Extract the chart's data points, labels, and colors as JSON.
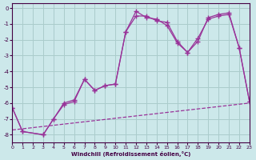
{
  "background_color": "#cce8ea",
  "grid_color": "#aacccc",
  "line_color": "#993399",
  "xlabel": "Windchill (Refroidissement éolien,°C)",
  "xlim": [
    0,
    23
  ],
  "ylim": [
    -8.5,
    0.3
  ],
  "yticks": [
    0,
    -1,
    -2,
    -3,
    -4,
    -5,
    -6,
    -7,
    -8
  ],
  "xticks": [
    0,
    1,
    2,
    3,
    4,
    5,
    6,
    7,
    8,
    9,
    10,
    11,
    12,
    13,
    14,
    15,
    16,
    17,
    18,
    19,
    20,
    21,
    22,
    23
  ],
  "line1_x": [
    0,
    1,
    3,
    4,
    5,
    6,
    7,
    8,
    9,
    10,
    11,
    12,
    13,
    14,
    15,
    16,
    17,
    18,
    19,
    20,
    21,
    22,
    23
  ],
  "line1_y": [
    -6.3,
    -7.8,
    -8.0,
    -7.0,
    -6.1,
    -5.9,
    -4.5,
    -5.2,
    -4.9,
    -4.8,
    -1.5,
    -0.2,
    -0.6,
    -0.7,
    -1.1,
    -2.2,
    -2.8,
    -2.1,
    -0.6,
    -0.4,
    -0.3,
    -2.5,
    -5.9
  ],
  "line2_x": [
    0,
    1,
    3,
    4,
    5,
    6,
    7,
    8,
    9,
    10,
    11,
    12,
    13,
    14,
    15,
    16,
    17,
    18,
    19,
    20,
    21,
    22,
    23
  ],
  "line2_y": [
    -6.3,
    -7.8,
    -8.0,
    -7.0,
    -6.0,
    -5.8,
    -4.5,
    -5.2,
    -4.9,
    -4.8,
    -1.5,
    -0.5,
    -0.5,
    -0.8,
    -0.9,
    -2.1,
    -2.8,
    -1.9,
    -0.7,
    -0.5,
    -0.4,
    -2.5,
    -5.9
  ],
  "line3_x": [
    0,
    23
  ],
  "line3_y": [
    -7.7,
    -6.0
  ]
}
